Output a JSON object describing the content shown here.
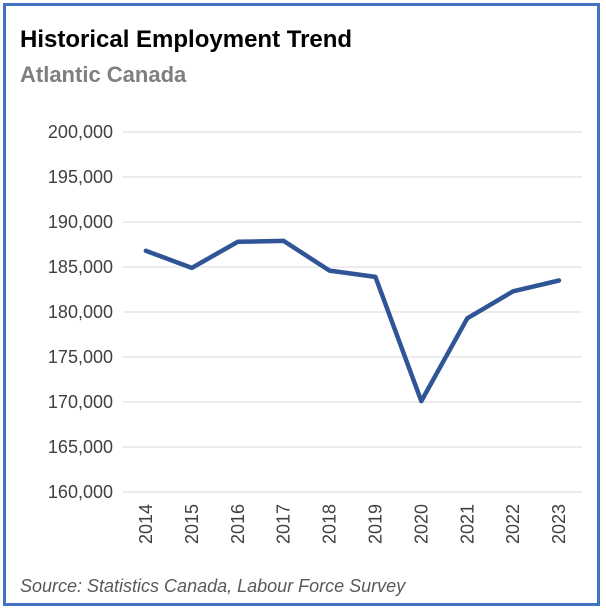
{
  "header": {
    "title": "Historical Employment Trend",
    "subtitle": "Atlantic Canada"
  },
  "footer": {
    "source": "Source: Statistics Canada, Labour Force Survey"
  },
  "colors": {
    "line": "#2f5597",
    "subtitle": "#7f7f7f",
    "source": "#595959",
    "grid": "#d9d9d9",
    "border": "#4472c4"
  },
  "chart_data": {
    "type": "line",
    "x": [
      "2014",
      "2015",
      "2016",
      "2017",
      "2018",
      "2019",
      "2020",
      "2021",
      "2022",
      "2023"
    ],
    "series": [
      {
        "values": [
          186800,
          184900,
          187800,
          187900,
          184600,
          183900,
          170100,
          179300,
          182300,
          183500
        ]
      }
    ],
    "ylim": [
      160000,
      200000
    ],
    "ytick_step": 5000,
    "ytick_labels": [
      "160,000",
      "165,000",
      "170,000",
      "175,000",
      "180,000",
      "185,000",
      "190,000",
      "195,000",
      "200,000"
    ],
    "xlabel": "",
    "ylabel": "",
    "grid": true,
    "legend": "none"
  }
}
